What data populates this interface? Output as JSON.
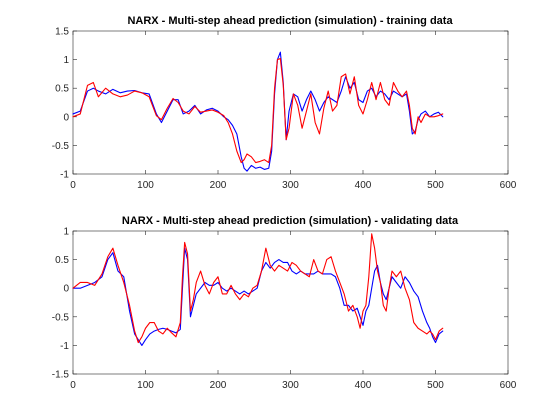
{
  "chart_data": [
    {
      "type": "line",
      "title": "NARX - Multi-step ahead prediction (simulation) - training data",
      "xlabel": "",
      "ylabel": "",
      "xlim": [
        0,
        600
      ],
      "ylim": [
        -1,
        1.5
      ],
      "xticks": [
        0,
        100,
        200,
        300,
        400,
        500,
        600
      ],
      "yticks": [
        -1,
        -0.5,
        0,
        0.5,
        1,
        1.5
      ],
      "xtick_labels": [
        "0",
        "100",
        "200",
        "300",
        "400",
        "500",
        "600"
      ],
      "ytick_labels": [
        "-1",
        "-0.5",
        "0",
        "0.5",
        "1",
        "1.5"
      ],
      "grid": false,
      "legend": "none",
      "series": [
        {
          "color": "#0000ff",
          "x": [
            0,
            10,
            20,
            28,
            35,
            45,
            55,
            65,
            75,
            85,
            95,
            105,
            115,
            122,
            130,
            138,
            145,
            152,
            160,
            168,
            176,
            184,
            192,
            200,
            208,
            214,
            220,
            226,
            232,
            236,
            240,
            246,
            252,
            258,
            264,
            270,
            274,
            278,
            282,
            286,
            290,
            294,
            298,
            304,
            310,
            316,
            322,
            328,
            334,
            340,
            346,
            352,
            358,
            364,
            370,
            376,
            382,
            388,
            394,
            400,
            406,
            412,
            418,
            424,
            430,
            436,
            442,
            448,
            454,
            460,
            464,
            468,
            472,
            476,
            480,
            486,
            492,
            498,
            504,
            510
          ],
          "y": [
            0.05,
            0.1,
            0.45,
            0.5,
            0.45,
            0.4,
            0.48,
            0.42,
            0.45,
            0.46,
            0.42,
            0.4,
            0.05,
            -0.1,
            0.1,
            0.3,
            0.3,
            0.05,
            0.1,
            0.2,
            0.05,
            0.12,
            0.15,
            0.1,
            0.0,
            -0.05,
            -0.15,
            -0.3,
            -0.7,
            -0.9,
            -0.95,
            -0.85,
            -0.9,
            -0.88,
            -0.92,
            -0.9,
            -0.6,
            0.4,
            1.0,
            1.13,
            0.6,
            -0.4,
            0.1,
            0.4,
            0.35,
            0.1,
            0.3,
            0.45,
            0.3,
            0.1,
            0.25,
            0.35,
            0.3,
            0.25,
            0.45,
            0.7,
            0.5,
            0.6,
            0.3,
            0.25,
            0.45,
            0.5,
            0.35,
            0.45,
            0.4,
            0.3,
            0.45,
            0.4,
            0.35,
            0.4,
            0.1,
            -0.3,
            -0.25,
            -0.05,
            0.05,
            0.1,
            0.0,
            0.05,
            0.08,
            0.0
          ]
        },
        {
          "color": "#ff0000",
          "x": [
            0,
            10,
            20,
            28,
            35,
            45,
            55,
            65,
            75,
            85,
            95,
            105,
            115,
            122,
            130,
            138,
            145,
            152,
            160,
            168,
            176,
            184,
            192,
            200,
            208,
            214,
            220,
            226,
            232,
            236,
            240,
            246,
            252,
            258,
            264,
            270,
            274,
            278,
            282,
            286,
            290,
            294,
            298,
            304,
            310,
            316,
            322,
            328,
            334,
            340,
            346,
            352,
            358,
            364,
            370,
            376,
            382,
            388,
            394,
            400,
            406,
            412,
            418,
            424,
            430,
            436,
            442,
            448,
            454,
            460,
            464,
            468,
            472,
            476,
            480,
            486,
            492,
            498,
            504,
            510
          ],
          "y": [
            0.0,
            0.05,
            0.55,
            0.6,
            0.35,
            0.5,
            0.4,
            0.35,
            0.38,
            0.45,
            0.42,
            0.35,
            0.02,
            -0.05,
            0.15,
            0.32,
            0.25,
            0.1,
            0.05,
            0.18,
            0.08,
            0.1,
            0.12,
            0.08,
            0.02,
            -0.1,
            -0.3,
            -0.6,
            -0.8,
            -0.75,
            -0.65,
            -0.7,
            -0.8,
            -0.78,
            -0.75,
            -0.8,
            -0.5,
            0.5,
            1.0,
            1.02,
            0.55,
            -0.4,
            -0.2,
            0.4,
            0.2,
            -0.2,
            0.1,
            0.4,
            -0.1,
            -0.3,
            0.15,
            0.45,
            0.1,
            0.2,
            0.7,
            0.75,
            0.4,
            0.7,
            0.2,
            0.05,
            0.3,
            0.6,
            0.3,
            0.6,
            0.3,
            0.2,
            0.6,
            0.45,
            0.35,
            0.45,
            0.2,
            -0.2,
            -0.3,
            0.0,
            -0.1,
            0.05,
            0.0,
            0.0,
            0.02,
            0.05
          ]
        }
      ]
    },
    {
      "type": "line",
      "title": "NARX - Multi-step ahead prediction (simulation) - validating data",
      "xlabel": "",
      "ylabel": "",
      "xlim": [
        0,
        600
      ],
      "ylim": [
        -1.5,
        1
      ],
      "xticks": [
        0,
        100,
        200,
        300,
        400,
        500,
        600
      ],
      "yticks": [
        -1.5,
        -1,
        -0.5,
        0,
        0.5,
        1
      ],
      "xtick_labels": [
        "0",
        "100",
        "200",
        "300",
        "400",
        "500",
        "600"
      ],
      "ytick_labels": [
        "-1.5",
        "-1",
        "-0.5",
        "0",
        "0.5",
        "1"
      ],
      "grid": false,
      "legend": "none",
      "series": [
        {
          "color": "#0000ff",
          "x": [
            0,
            10,
            20,
            30,
            40,
            48,
            55,
            62,
            70,
            78,
            85,
            90,
            95,
            100,
            106,
            112,
            118,
            124,
            130,
            136,
            142,
            148,
            151,
            154,
            158,
            162,
            166,
            170,
            176,
            182,
            188,
            194,
            200,
            206,
            212,
            218,
            224,
            230,
            236,
            242,
            248,
            254,
            260,
            266,
            272,
            278,
            284,
            290,
            296,
            302,
            308,
            314,
            320,
            326,
            332,
            338,
            344,
            350,
            356,
            362,
            368,
            374,
            380,
            386,
            392,
            396,
            400,
            404,
            408,
            412,
            416,
            420,
            424,
            428,
            432,
            436,
            440,
            446,
            452,
            458,
            464,
            470,
            476,
            482,
            488,
            492,
            496,
            500,
            505,
            510
          ],
          "y": [
            0.0,
            0.0,
            0.05,
            0.1,
            0.2,
            0.5,
            0.62,
            0.3,
            0.2,
            -0.4,
            -0.8,
            -0.9,
            -1.0,
            -0.9,
            -0.8,
            -0.75,
            -0.72,
            -0.7,
            -0.72,
            -0.75,
            -0.78,
            -0.72,
            0.0,
            0.7,
            0.5,
            -0.5,
            -0.3,
            -0.1,
            0.0,
            0.1,
            0.05,
            0.05,
            0.1,
            0.0,
            -0.05,
            0.0,
            -0.05,
            -0.1,
            -0.05,
            -0.1,
            -0.05,
            0.0,
            0.3,
            0.45,
            0.35,
            0.45,
            0.5,
            0.45,
            0.45,
            0.3,
            0.25,
            0.3,
            0.25,
            0.25,
            0.25,
            0.3,
            0.25,
            0.25,
            0.25,
            0.2,
            0.0,
            -0.3,
            -0.3,
            -0.4,
            -0.35,
            -0.5,
            -0.65,
            -0.4,
            -0.3,
            0.0,
            0.3,
            0.4,
            0.1,
            -0.1,
            -0.2,
            0.0,
            0.2,
            0.1,
            0.0,
            0.2,
            0.1,
            -0.05,
            -0.15,
            -0.4,
            -0.6,
            -0.7,
            -0.85,
            -0.95,
            -0.8,
            -0.75
          ]
        },
        {
          "color": "#ff0000",
          "x": [
            0,
            10,
            20,
            30,
            40,
            48,
            55,
            62,
            70,
            78,
            85,
            90,
            95,
            100,
            106,
            112,
            118,
            124,
            130,
            136,
            142,
            148,
            151,
            154,
            158,
            162,
            166,
            170,
            176,
            182,
            188,
            194,
            200,
            206,
            212,
            218,
            224,
            230,
            236,
            242,
            248,
            254,
            260,
            266,
            272,
            278,
            284,
            290,
            296,
            302,
            308,
            314,
            320,
            326,
            332,
            338,
            344,
            350,
            356,
            362,
            368,
            374,
            380,
            386,
            392,
            396,
            400,
            404,
            408,
            412,
            416,
            420,
            424,
            428,
            432,
            436,
            440,
            446,
            452,
            458,
            464,
            470,
            476,
            482,
            488,
            492,
            496,
            500,
            505,
            510
          ],
          "y": [
            0.0,
            0.1,
            0.1,
            0.05,
            0.25,
            0.55,
            0.7,
            0.4,
            0.1,
            -0.3,
            -0.75,
            -0.95,
            -0.85,
            -0.7,
            -0.6,
            -0.6,
            -0.75,
            -0.8,
            -0.7,
            -0.78,
            -0.85,
            -0.6,
            0.2,
            0.8,
            0.6,
            -0.4,
            -0.2,
            0.1,
            0.3,
            0.05,
            -0.1,
            0.1,
            0.2,
            -0.1,
            -0.1,
            0.05,
            -0.1,
            -0.2,
            -0.1,
            -0.15,
            0.0,
            0.05,
            0.3,
            0.7,
            0.4,
            0.3,
            0.4,
            0.35,
            0.3,
            0.45,
            0.4,
            0.3,
            0.25,
            0.2,
            0.5,
            0.3,
            0.25,
            0.5,
            0.55,
            0.3,
            0.1,
            -0.1,
            -0.4,
            -0.3,
            -0.5,
            -0.7,
            -0.4,
            -0.3,
            0.2,
            0.95,
            0.7,
            0.3,
            0.1,
            -0.3,
            -0.4,
            0.0,
            0.3,
            0.2,
            0.3,
            0.0,
            -0.2,
            -0.6,
            -0.7,
            -0.75,
            -0.8,
            -0.75,
            -0.8,
            -0.9,
            -0.75,
            -0.7
          ]
        }
      ]
    }
  ]
}
